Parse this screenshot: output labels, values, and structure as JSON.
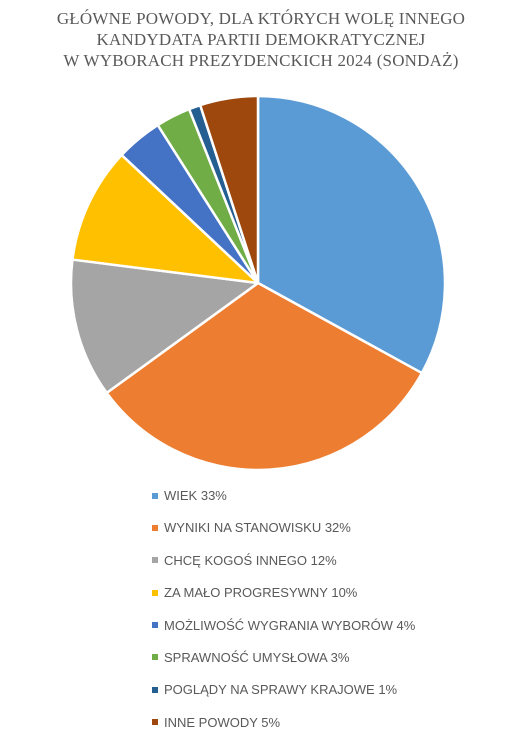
{
  "chart_data": {
    "type": "pie",
    "title_lines": [
      "GŁÓWNE POWODY, DLA KTÓRYCH WOLĘ INNEGO",
      "KANDYDATA PARTII DEMOKRATYCZNEJ",
      "W WYBORACH PREZYDENCKICH 2024 (SONDAŻ)"
    ],
    "legend_position": "bottom",
    "slices": [
      {
        "label": "WIEK 33%",
        "value": 33,
        "color": "#5b9bd5"
      },
      {
        "label": "WYNIKI NA STANOWISKU 32%",
        "value": 32,
        "color": "#ed7d31"
      },
      {
        "label": "CHCĘ KOGOŚ INNEGO 12%",
        "value": 12,
        "color": "#a5a5a5"
      },
      {
        "label": "ZA MAŁO PROGRESYWNY 10%",
        "value": 10,
        "color": "#ffc000"
      },
      {
        "label": "MOŻLIWOŚĆ WYGRANIA WYBORÓW 4%",
        "value": 4,
        "color": "#4472c4"
      },
      {
        "label": "SPRAWNOŚĆ UMYSŁOWA 3%",
        "value": 3,
        "color": "#70ad47"
      },
      {
        "label": "POGLĄDY NA SPRAWY KRAJOWE 1%",
        "value": 1,
        "color": "#255e91"
      },
      {
        "label": "INNE POWODY 5%",
        "value": 5,
        "color": "#9e480e"
      }
    ]
  }
}
